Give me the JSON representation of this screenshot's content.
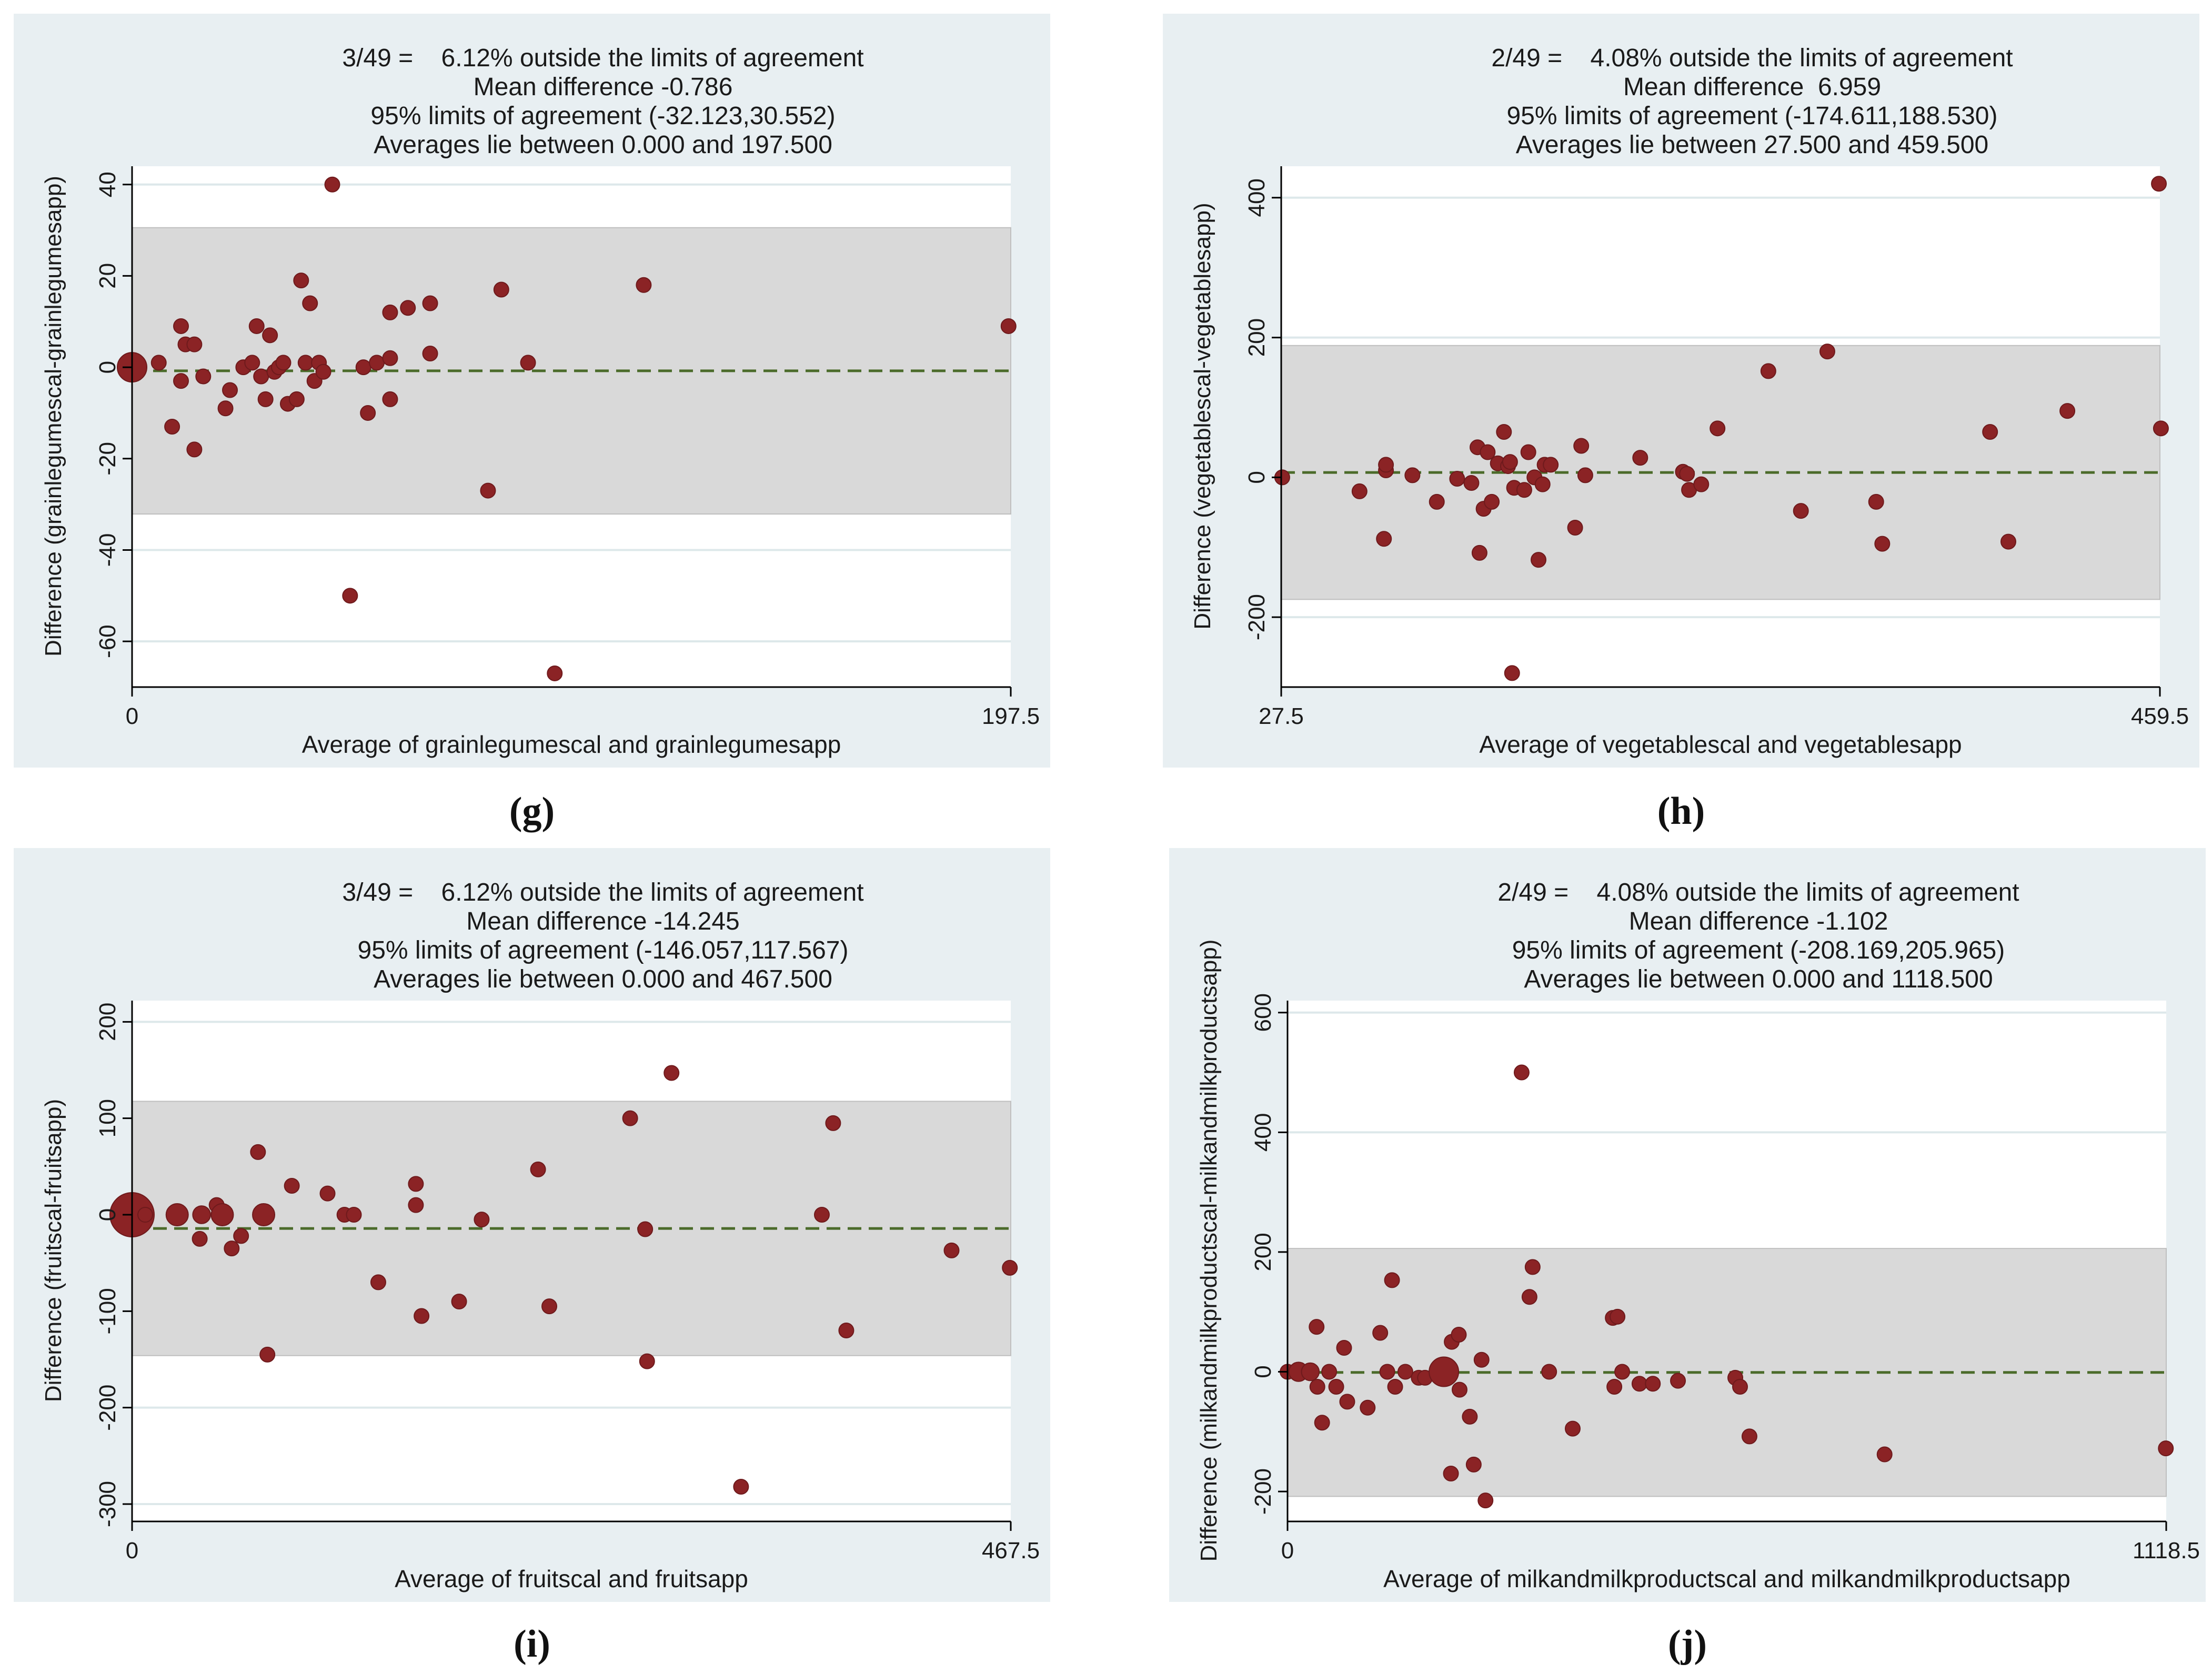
{
  "colors": {
    "panel_bg": "#e8eff2",
    "plot_bg": "#ffffff",
    "band": "#d9d9d9",
    "point": "#8b2325",
    "mean_line": "#4b6b2a",
    "grid": "#dde8ea"
  },
  "chart_data": [
    {
      "type": "scatter",
      "panel": "g",
      "caption": "(g)",
      "title_lines": [
        "3/49 =    6.12% outside the limits of agreement",
        "Mean difference -0.786",
        "95% limits of agreement (-32.123,30.552)",
        "Averages lie between 0.000 and 197.500"
      ],
      "xlabel": "Average of grainlegumescal and grainlegumesapp",
      "ylabel": "Difference (grainlegumescal-grainlegumesapp)",
      "xlim": [
        0,
        197.5
      ],
      "ylim": [
        -70,
        44
      ],
      "xticks": [
        0,
        197.5
      ],
      "xtick_labels": [
        "0",
        "197.5"
      ],
      "yticks": [
        -60,
        -40,
        -20,
        0,
        20,
        40
      ],
      "mean": -0.786,
      "loa": [
        -32.123,
        30.552
      ],
      "points": [
        [
          0,
          0,
          2
        ],
        [
          6,
          1,
          1
        ],
        [
          9,
          -13,
          1
        ],
        [
          11,
          9,
          1
        ],
        [
          11,
          -3,
          1
        ],
        [
          12,
          5,
          1
        ],
        [
          14,
          -18,
          1
        ],
        [
          14,
          5,
          1
        ],
        [
          16,
          -2,
          1
        ],
        [
          21,
          -9,
          1
        ],
        [
          22,
          -5,
          1
        ],
        [
          25,
          0,
          1
        ],
        [
          27,
          1,
          1
        ],
        [
          28,
          9,
          1
        ],
        [
          29,
          -2,
          1
        ],
        [
          30,
          -7,
          1
        ],
        [
          31,
          7,
          1
        ],
        [
          32,
          -1,
          1
        ],
        [
          33,
          0,
          1
        ],
        [
          34,
          1,
          1
        ],
        [
          35,
          -8,
          1
        ],
        [
          37,
          -7,
          1
        ],
        [
          38,
          19,
          1
        ],
        [
          39,
          1,
          1
        ],
        [
          40,
          14,
          1
        ],
        [
          41,
          -3,
          1
        ],
        [
          42,
          1,
          1
        ],
        [
          43,
          -1,
          1
        ],
        [
          45,
          40,
          1
        ],
        [
          49,
          -50,
          1
        ],
        [
          52,
          0,
          1
        ],
        [
          53,
          -10,
          1
        ],
        [
          55,
          1,
          1
        ],
        [
          58,
          -7,
          1
        ],
        [
          58,
          2,
          1
        ],
        [
          58,
          12,
          1
        ],
        [
          62,
          13,
          1
        ],
        [
          67,
          3,
          1
        ],
        [
          67,
          14,
          1
        ],
        [
          80,
          -27,
          1
        ],
        [
          83,
          17,
          1
        ],
        [
          89,
          1,
          1
        ],
        [
          95,
          -67,
          1
        ],
        [
          115,
          18,
          1
        ],
        [
          197,
          9,
          1
        ]
      ]
    },
    {
      "type": "scatter",
      "panel": "h",
      "caption": "(h)",
      "title_lines": [
        "2/49 =    4.08% outside the limits of agreement",
        "Mean difference  6.959",
        "95% limits of agreement (-174.611,188.530)",
        "Averages lie between 27.500 and 459.500"
      ],
      "xlabel": "Average of vegetablescal and vegetablesapp",
      "ylabel": "Difference (vegetablescal-vegetablesapp)",
      "xlim": [
        27.5,
        459.5
      ],
      "ylim": [
        -300,
        445
      ],
      "xticks": [
        27.5,
        459.5
      ],
      "xtick_labels": [
        "27.5",
        "459.5"
      ],
      "yticks": [
        -200,
        0,
        200,
        400
      ],
      "mean": 6.959,
      "loa": [
        -174.611,
        188.53
      ],
      "points": [
        [
          28,
          0,
          1
        ],
        [
          66,
          -20,
          1
        ],
        [
          78,
          -88,
          1
        ],
        [
          79,
          10,
          1
        ],
        [
          79,
          18,
          1
        ],
        [
          92,
          3,
          1
        ],
        [
          104,
          -35,
          1
        ],
        [
          114,
          -2,
          1
        ],
        [
          121,
          -8,
          1
        ],
        [
          124,
          43,
          1
        ],
        [
          125,
          -108,
          1
        ],
        [
          127,
          -45,
          1
        ],
        [
          129,
          36,
          1
        ],
        [
          131,
          -35,
          1
        ],
        [
          134,
          20,
          1
        ],
        [
          137,
          65,
          1
        ],
        [
          139,
          16,
          1
        ],
        [
          140,
          22,
          1
        ],
        [
          141,
          -280,
          1
        ],
        [
          142,
          -15,
          1
        ],
        [
          147,
          -18,
          1
        ],
        [
          149,
          36,
          1
        ],
        [
          152,
          0,
          1
        ],
        [
          154,
          -118,
          1
        ],
        [
          156,
          -10,
          1
        ],
        [
          157,
          18,
          1
        ],
        [
          160,
          18,
          1
        ],
        [
          172,
          -72,
          1
        ],
        [
          175,
          45,
          1
        ],
        [
          177,
          3,
          1
        ],
        [
          204,
          28,
          1
        ],
        [
          225,
          8,
          1
        ],
        [
          227,
          5,
          1
        ],
        [
          228,
          -18,
          1
        ],
        [
          234,
          -10,
          1
        ],
        [
          242,
          70,
          1
        ],
        [
          267,
          152,
          1
        ],
        [
          283,
          -48,
          1
        ],
        [
          296,
          180,
          1
        ],
        [
          320,
          -35,
          1
        ],
        [
          323,
          -95,
          1
        ],
        [
          376,
          65,
          1
        ],
        [
          385,
          -92,
          1
        ],
        [
          414,
          95,
          1
        ],
        [
          459,
          420,
          1
        ],
        [
          460,
          70,
          1
        ]
      ]
    },
    {
      "type": "scatter",
      "panel": "i",
      "caption": "(i)",
      "title_lines": [
        "3/49 =    6.12% outside the limits of agreement",
        "Mean difference -14.245",
        "95% limits of agreement (-146.057,117.567)",
        "Averages lie between 0.000 and 467.500"
      ],
      "xlabel": "Average of fruitscal and fruitsapp",
      "ylabel": "Difference (fruitscal-fruitsapp)",
      "xlim": [
        0,
        467.5
      ],
      "ylim": [
        -318,
        222
      ],
      "xticks": [
        0,
        467.5
      ],
      "xtick_labels": [
        "0",
        "467.5"
      ],
      "yticks": [
        -300,
        -200,
        -100,
        0,
        100,
        200
      ],
      "mean": -14.245,
      "loa": [
        -146.057,
        117.567
      ],
      "points": [
        [
          0,
          0,
          3
        ],
        [
          7,
          0,
          1
        ],
        [
          24,
          0,
          1.5
        ],
        [
          36,
          -25,
          1
        ],
        [
          37,
          0,
          1.2
        ],
        [
          45,
          10,
          1
        ],
        [
          48,
          0,
          1.5
        ],
        [
          53,
          -35,
          1
        ],
        [
          58,
          -22,
          1
        ],
        [
          67,
          65,
          1
        ],
        [
          70,
          0,
          1.5
        ],
        [
          72,
          -145,
          1
        ],
        [
          85,
          30,
          1
        ],
        [
          104,
          22,
          1
        ],
        [
          113,
          0,
          1
        ],
        [
          118,
          0,
          1
        ],
        [
          131,
          -70,
          1
        ],
        [
          151,
          10,
          1
        ],
        [
          151,
          32,
          1
        ],
        [
          154,
          -105,
          1
        ],
        [
          174,
          -90,
          1
        ],
        [
          186,
          -5,
          1
        ],
        [
          216,
          47,
          1
        ],
        [
          222,
          -95,
          1
        ],
        [
          265,
          100,
          1
        ],
        [
          273,
          -15,
          1
        ],
        [
          274,
          -152,
          1
        ],
        [
          287,
          147,
          1
        ],
        [
          324,
          -282,
          1
        ],
        [
          367,
          0,
          1
        ],
        [
          373,
          95,
          1
        ],
        [
          380,
          -120,
          1
        ],
        [
          436,
          -37,
          1
        ],
        [
          467,
          -55,
          1
        ]
      ]
    },
    {
      "type": "scatter",
      "panel": "j",
      "caption": "(j)",
      "title_lines": [
        "2/49 =    4.08% outside the limits of agreement",
        "Mean difference -1.102",
        "95% limits of agreement (-208.169,205.965)",
        "Averages lie between 0.000 and 1118.500"
      ],
      "xlabel": "Average of milkandmilkproductscal and milkandmilkproductsapp",
      "ylabel": "Difference (milkandmilkproductscal-milkandmilkproductsapp)",
      "xlim": [
        0,
        1118.5
      ],
      "ylim": [
        -250,
        620
      ],
      "xticks": [
        0,
        1118.5
      ],
      "xtick_labels": [
        "0",
        "1118.5"
      ],
      "yticks": [
        -200,
        0,
        200,
        400,
        600
      ],
      "mean": -1.102,
      "loa": [
        -208.169,
        205.965
      ],
      "points": [
        [
          0,
          0,
          1
        ],
        [
          14,
          0,
          1.3
        ],
        [
          29,
          0,
          1.2
        ],
        [
          37,
          75,
          1
        ],
        [
          38,
          -25,
          1
        ],
        [
          44,
          -85,
          1
        ],
        [
          53,
          0,
          1
        ],
        [
          62,
          -25,
          1
        ],
        [
          72,
          40,
          1
        ],
        [
          76,
          -50,
          1
        ],
        [
          102,
          -60,
          1
        ],
        [
          118,
          65,
          1
        ],
        [
          127,
          0,
          1
        ],
        [
          133,
          153,
          1
        ],
        [
          137,
          -25,
          1
        ],
        [
          150,
          0,
          1
        ],
        [
          167,
          -10,
          1
        ],
        [
          175,
          -10,
          1
        ],
        [
          199,
          0,
          2
        ],
        [
          219,
          -30,
          1
        ],
        [
          208,
          -170,
          1
        ],
        [
          209,
          50,
          1
        ],
        [
          218,
          62,
          1
        ],
        [
          232,
          -75,
          1
        ],
        [
          237,
          -155,
          1
        ],
        [
          247,
          20,
          1
        ],
        [
          252,
          -215,
          1
        ],
        [
          298,
          500,
          1
        ],
        [
          308,
          125,
          1
        ],
        [
          312,
          175,
          1
        ],
        [
          333,
          0,
          1
        ],
        [
          363,
          -95,
          1
        ],
        [
          416,
          -25,
          1
        ],
        [
          414,
          90,
          1
        ],
        [
          420,
          92,
          1
        ],
        [
          426,
          0,
          1
        ],
        [
          448,
          -20,
          1
        ],
        [
          465,
          -20,
          1
        ],
        [
          497,
          -15,
          1
        ],
        [
          570,
          -10,
          1
        ],
        [
          576,
          -25,
          1
        ],
        [
          588,
          -108,
          1
        ],
        [
          760,
          -138,
          1
        ],
        [
          1118,
          -128,
          1
        ]
      ]
    }
  ]
}
